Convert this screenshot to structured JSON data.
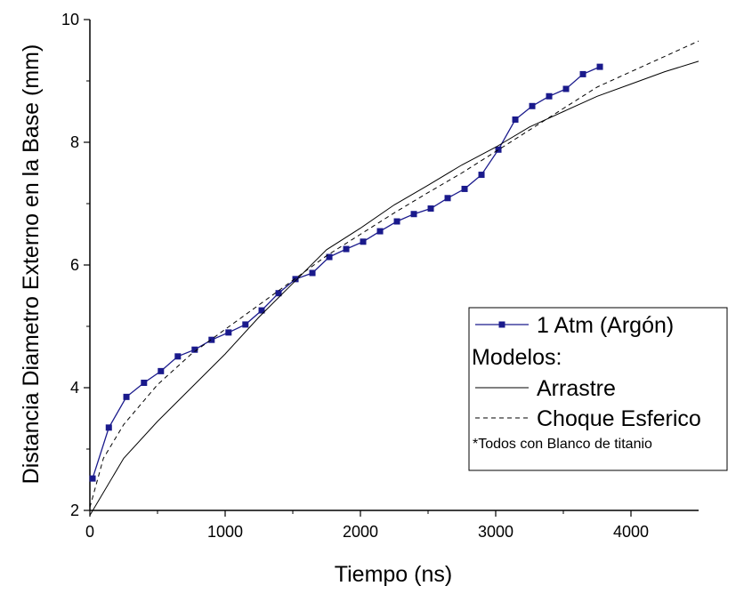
{
  "chart_data": {
    "type": "line",
    "xlabel": "Tiempo (ns)",
    "ylabel": "Distancia Diametro Externo en la Base (mm)",
    "xlim": [
      0,
      4500
    ],
    "ylim": [
      2,
      10
    ],
    "x_ticks": [
      0,
      1000,
      2000,
      3000,
      4000
    ],
    "y_ticks": [
      2,
      4,
      6,
      8,
      10
    ],
    "x_tick_labels": [
      "0",
      "1000",
      "2000",
      "3000",
      "4000"
    ],
    "y_tick_labels": [
      "2",
      "4",
      "6",
      "8",
      "10"
    ],
    "grid": false,
    "legend_position": "lower-right",
    "colors": {
      "data": "#1a1a8c",
      "model": "#000000"
    },
    "series": [
      {
        "name": "1 Atm (Argón)",
        "style": "line-square-markers",
        "color": "#1a1a8c",
        "x": [
          20,
          140,
          270,
          400,
          525,
          650,
          775,
          900,
          1025,
          1150,
          1270,
          1395,
          1520,
          1645,
          1770,
          1895,
          2020,
          2145,
          2270,
          2395,
          2520,
          2645,
          2770,
          2895,
          3020,
          3145,
          3270,
          3395,
          3520,
          3645,
          3770
        ],
        "y": [
          2.52,
          3.35,
          3.85,
          4.08,
          4.27,
          4.51,
          4.62,
          4.78,
          4.9,
          5.03,
          5.26,
          5.54,
          5.77,
          5.87,
          6.13,
          6.26,
          6.38,
          6.55,
          6.71,
          6.83,
          6.92,
          7.09,
          7.24,
          7.47,
          7.88,
          8.37,
          8.59,
          8.75,
          8.87,
          9.11,
          9.23
        ]
      },
      {
        "name": "Arrastre",
        "style": "solid",
        "color": "#000000",
        "x": [
          0,
          250,
          500,
          750,
          1000,
          1250,
          1500,
          1750,
          2000,
          2250,
          2500,
          2750,
          3000,
          3250,
          3500,
          3750,
          4000,
          4250,
          4500
        ],
        "y": [
          1.92,
          2.85,
          3.45,
          4.0,
          4.55,
          5.15,
          5.7,
          6.25,
          6.6,
          6.98,
          7.3,
          7.63,
          7.92,
          8.25,
          8.5,
          8.75,
          8.95,
          9.15,
          9.32
        ]
      },
      {
        "name": "Choque Esferico",
        "style": "dashed",
        "color": "#000000",
        "x": [
          0,
          100,
          250,
          500,
          750,
          1000,
          1250,
          1500,
          1750,
          2000,
          2250,
          2500,
          2750,
          3000,
          3250,
          3500,
          3750,
          4000,
          4250,
          4500
        ],
        "y": [
          2.05,
          2.85,
          3.4,
          4.05,
          4.55,
          4.95,
          5.35,
          5.75,
          6.15,
          6.5,
          6.85,
          7.18,
          7.5,
          7.85,
          8.2,
          8.55,
          8.9,
          9.15,
          9.4,
          9.65
        ]
      }
    ],
    "legend": {
      "entries": [
        "1 Atm (Argón)",
        "Modelos:",
        "Arrastre",
        "Choque Esferico",
        "*Todos con Blanco de titanio"
      ]
    }
  }
}
